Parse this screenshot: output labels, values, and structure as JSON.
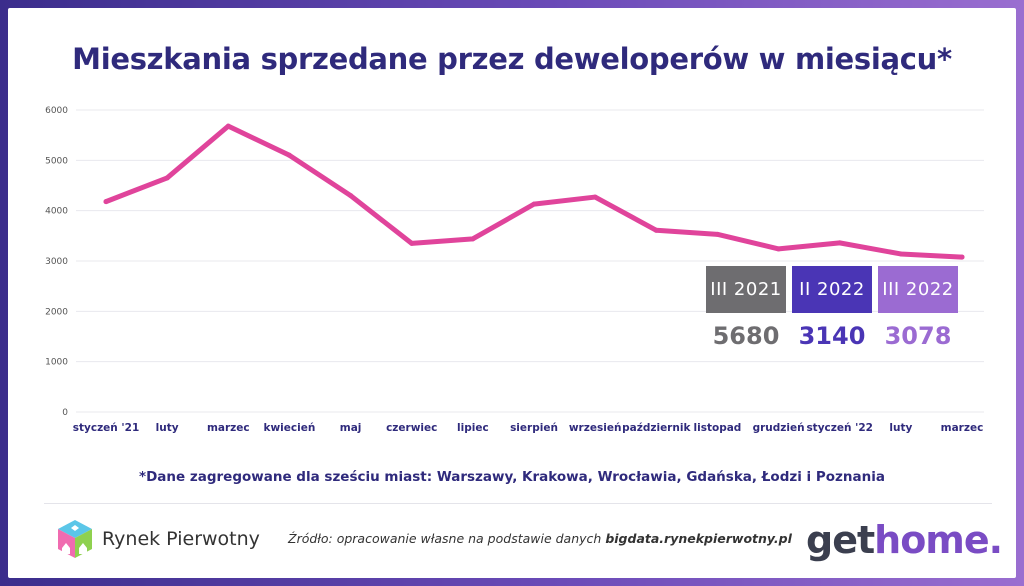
{
  "title": "Mieszkania sprzedane przez deweloperów w miesiącu*",
  "footnote": "*Dane zagregowane dla sześciu miast: Warszawy, Krakowa, Wrocławia, Gdańska, Łodzi i Poznania",
  "source": {
    "prefix": "Źródło: opracowanie własne na podstawie danych ",
    "link": "bigdata.rynekpierwotny.pl"
  },
  "logos": {
    "left_name": "Rynek Pierwotny",
    "right_get": "get",
    "right_home": "home."
  },
  "colors": {
    "line": "#e0449b",
    "title": "#2f2a7c",
    "badge_1": "#6e6d70",
    "badge_2": "#4a35b5",
    "badge_3": "#9b6bd2"
  },
  "highlights": [
    {
      "label": "III 2021",
      "value": "5680"
    },
    {
      "label": "II 2022",
      "value": "3140"
    },
    {
      "label": "III 2022",
      "value": "3078"
    }
  ],
  "chart_data": {
    "type": "line",
    "categories": [
      "styczeń '21",
      "luty",
      "marzec",
      "kwiecień",
      "maj",
      "czerwiec",
      "lipiec",
      "sierpień",
      "wrzesień",
      "październik",
      "listopad",
      "grudzień",
      "styczeń '22",
      "luty",
      "marzec"
    ],
    "values": [
      4180,
      4650,
      5680,
      5100,
      4300,
      3350,
      3440,
      4130,
      4270,
      3610,
      3530,
      3240,
      3360,
      3140,
      3078
    ],
    "ylim": [
      0,
      6000
    ],
    "yticks": [
      0,
      1000,
      2000,
      3000,
      4000,
      5000,
      6000
    ],
    "grid": true,
    "legend": "none"
  }
}
